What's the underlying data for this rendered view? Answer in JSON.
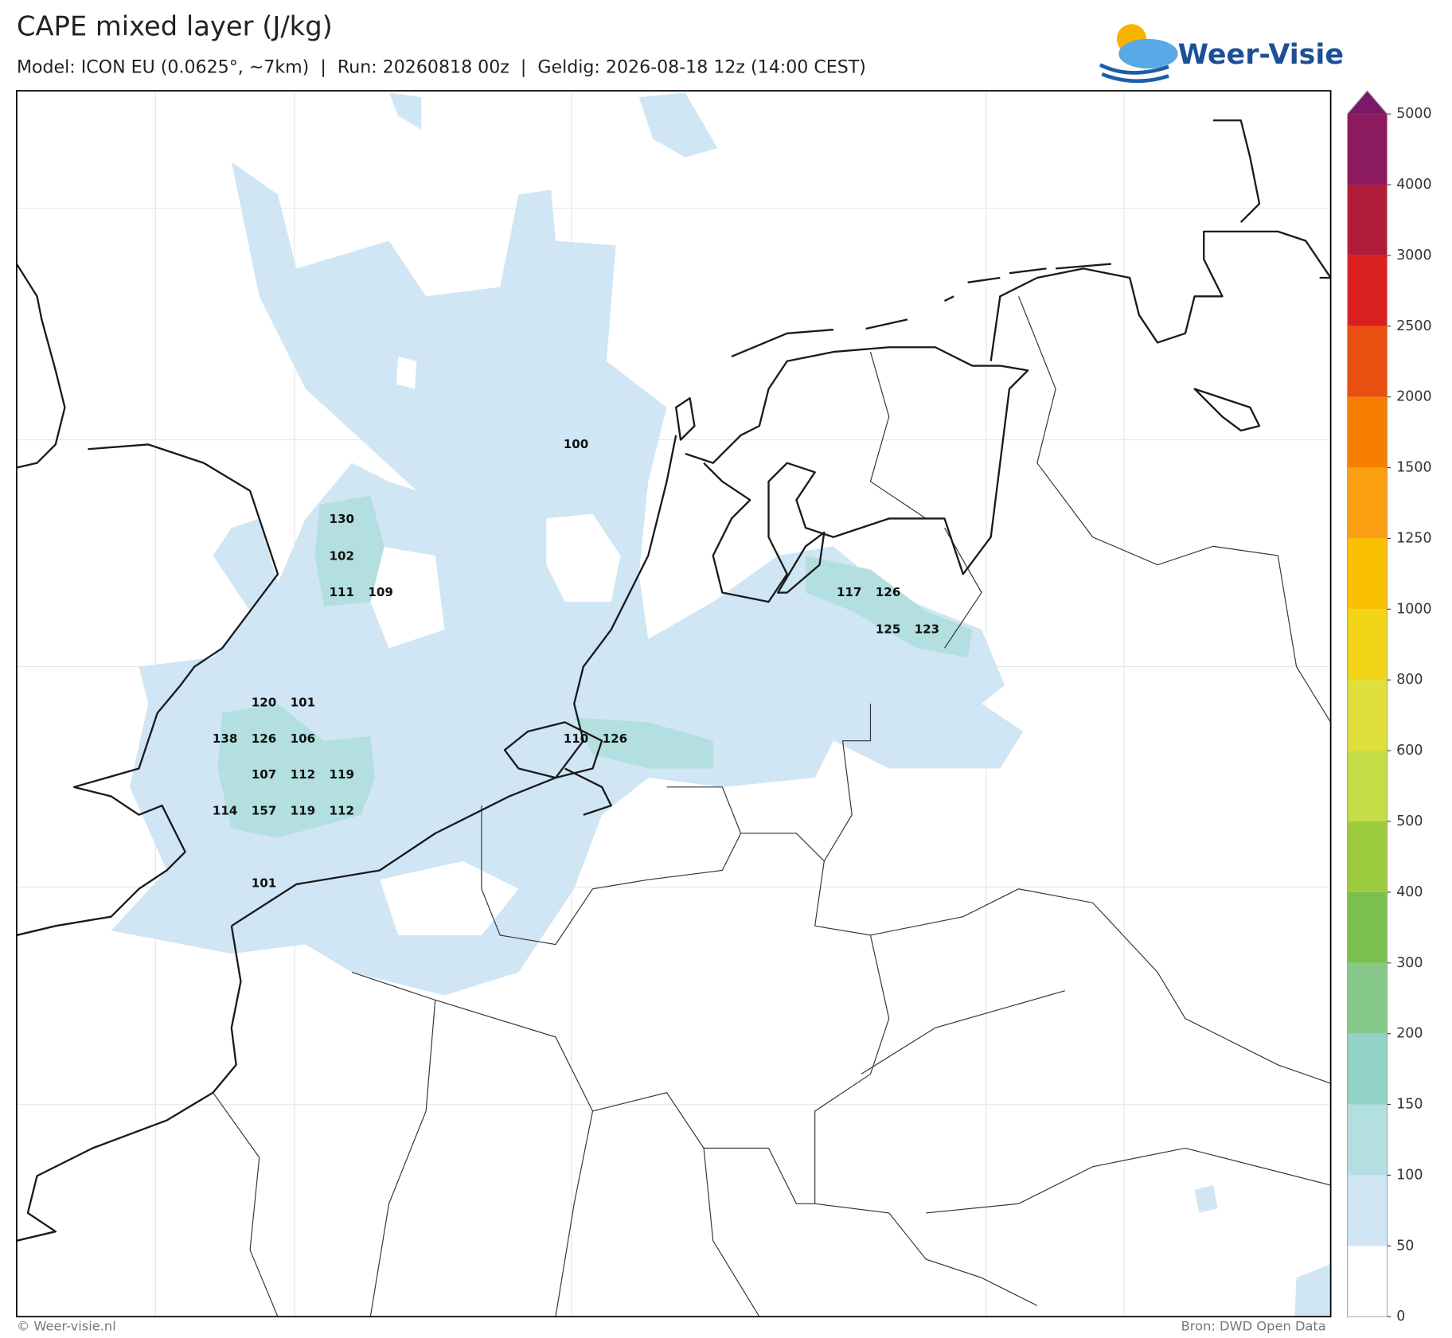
{
  "header": {
    "title": "CAPE mixed layer (J/kg)",
    "subtitle": "Model: ICON EU (0.0625°, ~7km)  |  Run: 20260818 00z  |  Geldig: 2026-08-18 12z (14:00 CEST)",
    "logo": "Weer-Visie"
  },
  "colorbar": {
    "levels": [
      0,
      50,
      100,
      150,
      200,
      300,
      400,
      500,
      600,
      800,
      1000,
      1250,
      1500,
      2000,
      2500,
      3000,
      4000,
      5000
    ],
    "colors": [
      "#ffffff",
      "#d0e6f5",
      "#b3dfe0",
      "#93d2c6",
      "#87c98b",
      "#79c04f",
      "#9dcb3e",
      "#c6dc46",
      "#dfe03b",
      "#f2d418",
      "#fac100",
      "#fa9f12",
      "#f77f00",
      "#ea4f12",
      "#da1f1f",
      "#b21c3b",
      "#8c1a5f",
      "#7b1868"
    ]
  },
  "map_labels": [
    100,
    130,
    102,
    111,
    109,
    117,
    126,
    125,
    123,
    120,
    101,
    138,
    126,
    106,
    110,
    126,
    107,
    112,
    119,
    114,
    157,
    119,
    112,
    101
  ],
  "footer": {
    "copyright": "© Weer-visie.nl",
    "source": "Bron: DWD Open Data"
  }
}
